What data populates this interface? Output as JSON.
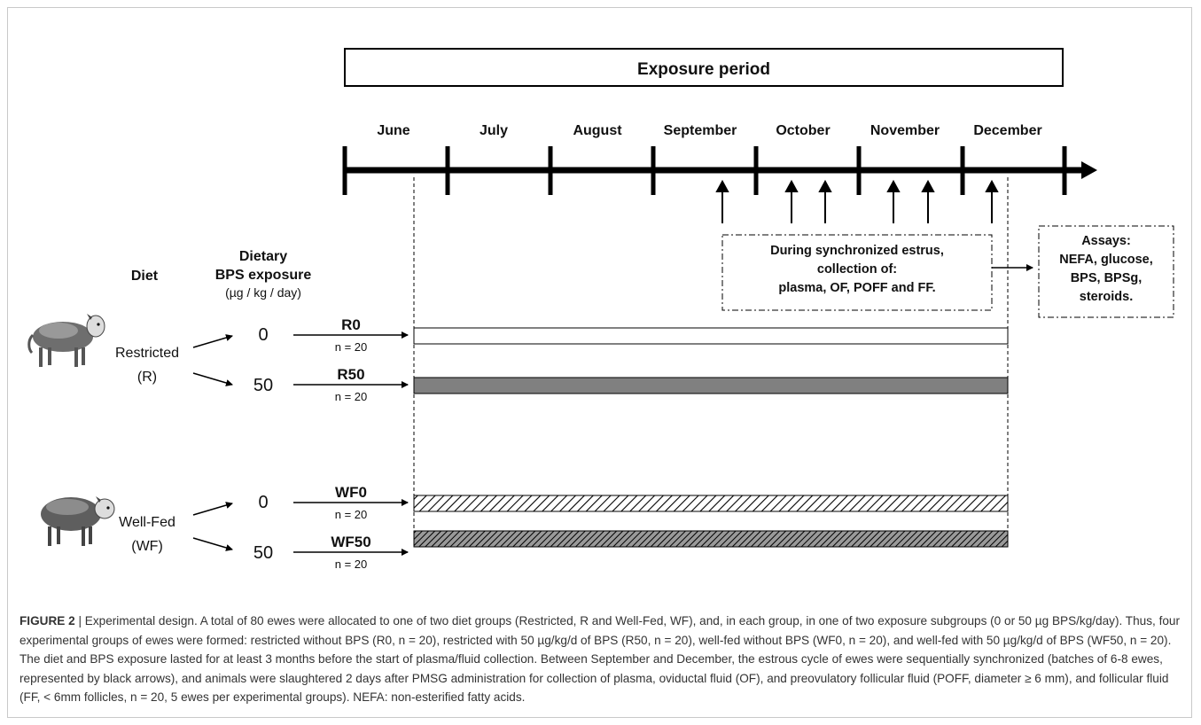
{
  "diagram": {
    "exposure_label": "Exposure period",
    "months": [
      "June",
      "July",
      "August",
      "September",
      "October",
      "November",
      "December"
    ],
    "collection_box": {
      "line1": "During synchronized estrus,",
      "line2": "collection of:",
      "line3": "plasma, OF, POFF and FF."
    },
    "assays_box": {
      "line1": "Assays:",
      "line2": "NEFA, glucose,",
      "line3": "BPS, BPSg,",
      "line4": "steroids."
    },
    "column_headers": {
      "diet": "Diet",
      "dietary_line1": "Dietary",
      "dietary_line2": "BPS exposure",
      "units": "(µg / kg / day)"
    },
    "diets": [
      {
        "name": "Restricted",
        "abbrev": "(R)"
      },
      {
        "name": "Well-Fed",
        "abbrev": "(WF)"
      }
    ],
    "groups": [
      {
        "dose": "0",
        "label": "R0",
        "n": "n = 20",
        "fill": "white"
      },
      {
        "dose": "50",
        "label": "R50",
        "n": "n = 20",
        "fill": "gray"
      },
      {
        "dose": "0",
        "label": "WF0",
        "n": "n = 20",
        "fill": "hatch-light"
      },
      {
        "dose": "50",
        "label": "WF50",
        "n": "n = 20",
        "fill": "hatch-dark"
      }
    ],
    "colors": {
      "gray_bar": "#808080",
      "line": "#000000"
    },
    "icons": [
      "sheep-icon",
      "sheep-icon"
    ]
  },
  "caption": {
    "label": "FIGURE 2",
    "separator": " | ",
    "text": "Experimental design. A total of 80 ewes were allocated to one of two diet groups (Restricted, R and Well-Fed, WF), and, in each group, in one of two exposure subgroups (0 or 50 µg BPS/kg/day). Thus, four experimental groups of ewes were formed: restricted without BPS (R0, n = 20), restricted with 50 µg/kg/d of BPS (R50, n = 20), well-fed without BPS (WF0, n = 20), and well-fed with 50 µg/kg/d of BPS (WF50, n = 20). The diet and BPS exposure lasted for at least 3 months before the start of plasma/fluid collection. Between September and December, the estrous cycle of ewes were sequentially synchronized (batches of 6-8 ewes, represented by black arrows), and animals were slaughtered 2 days after PMSG administration for collection of plasma, oviductal fluid (OF), and preovulatory follicular fluid (POFF, diameter ≥ 6 mm), and follicular fluid (FF, < 6mm follicles, n = 20, 5 ewes per experimental groups). NEFA: non-esterified fatty acids."
  }
}
